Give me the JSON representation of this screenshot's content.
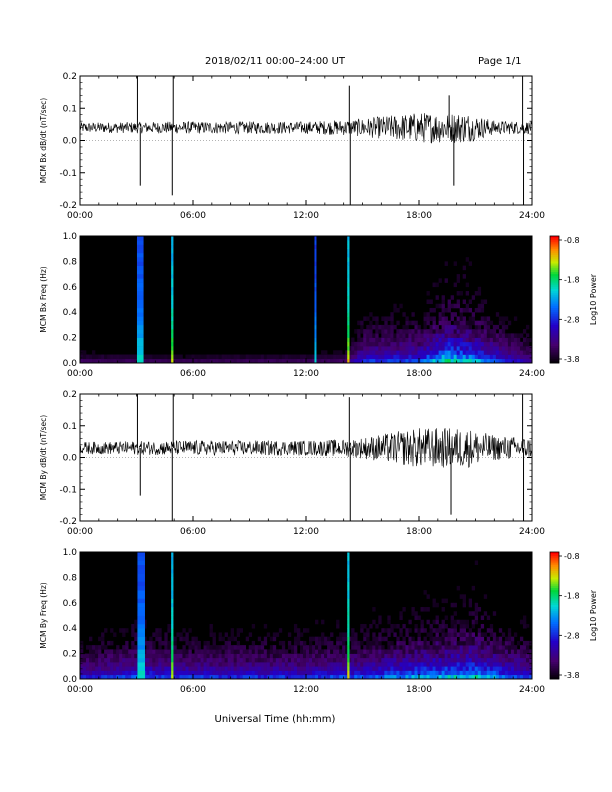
{
  "header": {
    "date_range": "2018/02/11  00:00–24:00 UT",
    "page": "Page 1/1"
  },
  "x_axis_label": "Universal Time (hh:mm)",
  "colors": {
    "line": "#000000",
    "background": "#ffffff",
    "spectrogram_bg": "#000000"
  },
  "chart_data": [
    {
      "type": "line",
      "ylabel": "MCM Bx dB/dt (nT/sec)",
      "x_ticks": [
        "00:00",
        "06:00",
        "12:00",
        "18:00",
        "24:00"
      ],
      "y_ticks": [
        "0.2",
        "0.1",
        "0.0",
        "-0.1",
        "-0.2"
      ],
      "xlim": [
        0,
        24
      ],
      "ylim": [
        -0.2,
        0.2
      ],
      "baseline": 0.04,
      "noise": [
        [
          0,
          0.01
        ],
        [
          6,
          0.012
        ],
        [
          12,
          0.012
        ],
        [
          14.5,
          0.016
        ],
        [
          18,
          0.03
        ],
        [
          20.5,
          0.03
        ],
        [
          22,
          0.014
        ],
        [
          24,
          0.012
        ]
      ],
      "spikes": [
        {
          "x": 3.05,
          "y": 0.21
        },
        {
          "x": 3.2,
          "y": -0.14
        },
        {
          "x": 4.9,
          "y": -0.17
        },
        {
          "x": 4.95,
          "y": 0.21
        },
        {
          "x": 14.3,
          "y": 0.17
        },
        {
          "x": 14.35,
          "y": -0.2
        },
        {
          "x": 19.6,
          "y": 0.14
        },
        {
          "x": 19.85,
          "y": -0.14
        },
        {
          "x": 23.5,
          "y": 0.21
        },
        {
          "x": 23.55,
          "y": -0.2
        }
      ]
    },
    {
      "type": "heatmap",
      "ylabel": "MCM Bx Freq (Hz)",
      "colorbar_label": "Log10 Power",
      "colorbar_ticks": [
        "-0.8",
        "-1.8",
        "-2.8",
        "-3.8"
      ],
      "x_ticks": [
        "00:00",
        "06:00",
        "12:00",
        "18:00",
        "24:00"
      ],
      "y_ticks": [
        "1.0",
        "0.8",
        "0.6",
        "0.4",
        "0.2",
        "0.0"
      ],
      "xlim": [
        0,
        24
      ],
      "ylim": [
        0,
        1.0
      ],
      "activity": [
        [
          0,
          0.1
        ],
        [
          6,
          0.08
        ],
        [
          14,
          0.1
        ],
        [
          15,
          0.35
        ],
        [
          18,
          0.4
        ],
        [
          19.5,
          0.65
        ],
        [
          20.5,
          0.6
        ],
        [
          22,
          0.4
        ],
        [
          24,
          0.2
        ]
      ],
      "bands": [
        {
          "x": 3.2,
          "w": 0.35,
          "level": 0.62
        },
        {
          "x": 4.9,
          "w": 0.12,
          "level": 0.82
        },
        {
          "x": 12.5,
          "w": 0.1,
          "level": 0.6
        },
        {
          "x": 14.25,
          "w": 0.12,
          "level": 0.85
        }
      ]
    },
    {
      "type": "line",
      "ylabel": "MCM By dB/dt (nT/sec)",
      "x_ticks": [
        "00:00",
        "06:00",
        "12:00",
        "18:00",
        "24:00"
      ],
      "y_ticks": [
        "0.2",
        "0.1",
        "0.0",
        "-0.1",
        "-0.2"
      ],
      "xlim": [
        0,
        24
      ],
      "ylim": [
        -0.2,
        0.2
      ],
      "baseline": 0.03,
      "noise": [
        [
          0,
          0.012
        ],
        [
          6,
          0.015
        ],
        [
          12,
          0.015
        ],
        [
          14.5,
          0.018
        ],
        [
          18,
          0.04
        ],
        [
          20.5,
          0.04
        ],
        [
          22,
          0.025
        ],
        [
          24,
          0.02
        ]
      ],
      "spikes": [
        {
          "x": 3.05,
          "y": 0.2
        },
        {
          "x": 3.2,
          "y": -0.12
        },
        {
          "x": 4.9,
          "y": -0.21
        },
        {
          "x": 4.95,
          "y": 0.2
        },
        {
          "x": 14.3,
          "y": 0.19
        },
        {
          "x": 14.35,
          "y": -0.2
        },
        {
          "x": 19.7,
          "y": -0.18
        },
        {
          "x": 23.5,
          "y": 0.2
        },
        {
          "x": 23.55,
          "y": -0.2
        }
      ]
    },
    {
      "type": "heatmap",
      "ylabel": "MCM By Freq (Hz)",
      "colorbar_label": "Log10 Power",
      "colorbar_ticks": [
        "-0.8",
        "-1.8",
        "-2.8",
        "-3.8"
      ],
      "x_ticks": [
        "00:00",
        "06:00",
        "12:00",
        "18:00",
        "24:00"
      ],
      "y_ticks": [
        "1.0",
        "0.8",
        "0.6",
        "0.4",
        "0.2",
        "0.0"
      ],
      "xlim": [
        0,
        24
      ],
      "ylim": [
        0,
        1.0
      ],
      "activity": [
        [
          0,
          0.3
        ],
        [
          3,
          0.4
        ],
        [
          6,
          0.35
        ],
        [
          12,
          0.35
        ],
        [
          15,
          0.4
        ],
        [
          19,
          0.55
        ],
        [
          21,
          0.6
        ],
        [
          22.5,
          0.45
        ],
        [
          24,
          0.35
        ]
      ],
      "bands": [
        {
          "x": 3.25,
          "w": 0.4,
          "level": 0.62
        },
        {
          "x": 4.9,
          "w": 0.12,
          "level": 0.82
        },
        {
          "x": 14.25,
          "w": 0.12,
          "level": 0.85
        }
      ]
    }
  ]
}
